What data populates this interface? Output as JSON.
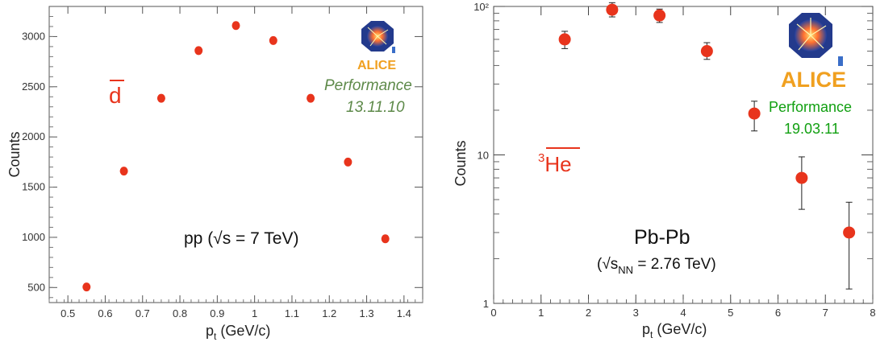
{
  "colors": {
    "marker": "#e8341c",
    "perf_left": "#5e8a4a",
    "perf_right": "#12a012",
    "logo_orange": "#f0a020"
  },
  "icons": {
    "logo": "alice-logo"
  },
  "chart_data": [
    {
      "type": "scatter",
      "xlabel": "p",
      "xlabel_sub": "t",
      "xlabel_unit": "(GeV/c)",
      "ylabel": "Counts",
      "xlim": [
        0.45,
        1.45
      ],
      "ylim": [
        350,
        3300
      ],
      "xticks": [
        "0.5",
        "0.6",
        "0.7",
        "0.8",
        "0.9",
        "1",
        "1.1",
        "1.2",
        "1.3",
        "1.4"
      ],
      "yticks": [
        "500",
        "1000",
        "1500",
        "2000",
        "2500",
        "3000"
      ],
      "x": [
        0.55,
        0.65,
        0.75,
        0.85,
        0.95,
        1.05,
        1.15,
        1.25,
        1.35
      ],
      "y": [
        505,
        1660,
        2385,
        2860,
        3110,
        2960,
        2385,
        1750,
        985
      ],
      "particle_label": "d",
      "system_label": "pp (√s = 7 TeV)",
      "logo_text": "ALICE",
      "performance": "Performance",
      "date": "13.11.10"
    },
    {
      "type": "scatter",
      "yscale": "log",
      "xlabel": "p",
      "xlabel_sub": "t",
      "xlabel_unit": "(GeV/c)",
      "ylabel": "Counts",
      "xlim": [
        0,
        8
      ],
      "ylim": [
        1,
        100
      ],
      "xticks": [
        "0",
        "1",
        "2",
        "3",
        "4",
        "5",
        "6",
        "7",
        "8"
      ],
      "yticks": [
        "1",
        "10",
        "10²"
      ],
      "x": [
        1.5,
        2.5,
        3.5,
        4.5,
        5.5,
        6.5,
        7.5
      ],
      "y": [
        60,
        95,
        87,
        50,
        19,
        7,
        3
      ],
      "y_err_low": [
        52,
        85,
        78,
        44,
        14.5,
        4.3,
        1.25
      ],
      "y_err_high": [
        68,
        106,
        96,
        57,
        23,
        9.7,
        4.8
      ],
      "particle_label_sup": "3",
      "particle_label": "He",
      "system_label": "Pb-Pb",
      "system_sub_pre": "(√s",
      "system_sub_sub": "NN",
      "system_sub_post": " = 2.76 TeV)",
      "logo_text": "ALICE",
      "performance": "Performance",
      "date": "19.03.11"
    }
  ]
}
